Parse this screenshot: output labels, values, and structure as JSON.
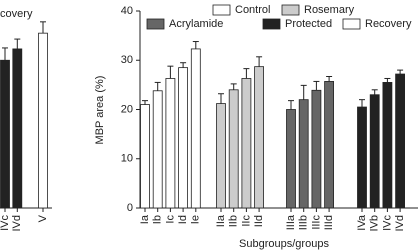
{
  "chart_data": [
    {
      "type": "bar",
      "ylim": [
        0,
        40
      ],
      "legend": [
        {
          "name": "Recovery",
          "color": "#ffffff"
        }
      ],
      "groups": [
        {
          "categories": [
            "IVc",
            "IVd"
          ],
          "color": "#222222",
          "values": [
            30.0,
            32.3
          ],
          "errors": [
            2.5,
            2.0
          ]
        },
        {
          "categories": [
            "V"
          ],
          "color": "#ffffff",
          "values": [
            35.5
          ],
          "errors": [
            2.3
          ]
        }
      ]
    },
    {
      "type": "bar",
      "ylabel": "MBP area (%)",
      "xlabel": "Subgroups/groups",
      "ylim": [
        0,
        40
      ],
      "yticks": [
        0,
        10,
        20,
        30,
        40
      ],
      "legend": [
        {
          "name": "Control",
          "color": "#ffffff"
        },
        {
          "name": "Rosemary",
          "color": "#cccccc"
        },
        {
          "name": "Acrylamide",
          "color": "#666666"
        },
        {
          "name": "Protected",
          "color": "#222222"
        },
        {
          "name": "Recovery",
          "color": "#ffffff"
        }
      ],
      "groups": [
        {
          "categories": [
            "Ia",
            "Ib",
            "Ic",
            "Id",
            "Ie"
          ],
          "color": "#ffffff",
          "values": [
            21.0,
            23.8,
            26.3,
            28.5,
            32.3
          ],
          "errors": [
            0.8,
            1.7,
            2.5,
            1.0,
            1.5
          ]
        },
        {
          "categories": [
            "IIa",
            "IIb",
            "IIc",
            "IId"
          ],
          "color": "#cccccc",
          "values": [
            21.2,
            24.0,
            26.3,
            28.7
          ],
          "errors": [
            2.0,
            1.2,
            2.0,
            2.0
          ]
        },
        {
          "categories": [
            "IIIa",
            "IIIb",
            "IIIc",
            "IIId"
          ],
          "color": "#666666",
          "values": [
            20.0,
            22.0,
            23.9,
            25.7
          ],
          "errors": [
            1.8,
            2.9,
            1.8,
            1.0
          ]
        },
        {
          "categories": [
            "IVa",
            "IVb",
            "IVc",
            "IVd"
          ],
          "color": "#222222",
          "values": [
            20.5,
            23.0,
            25.5,
            27.2
          ],
          "errors": [
            1.5,
            1.0,
            0.8,
            0.8
          ]
        }
      ]
    }
  ]
}
